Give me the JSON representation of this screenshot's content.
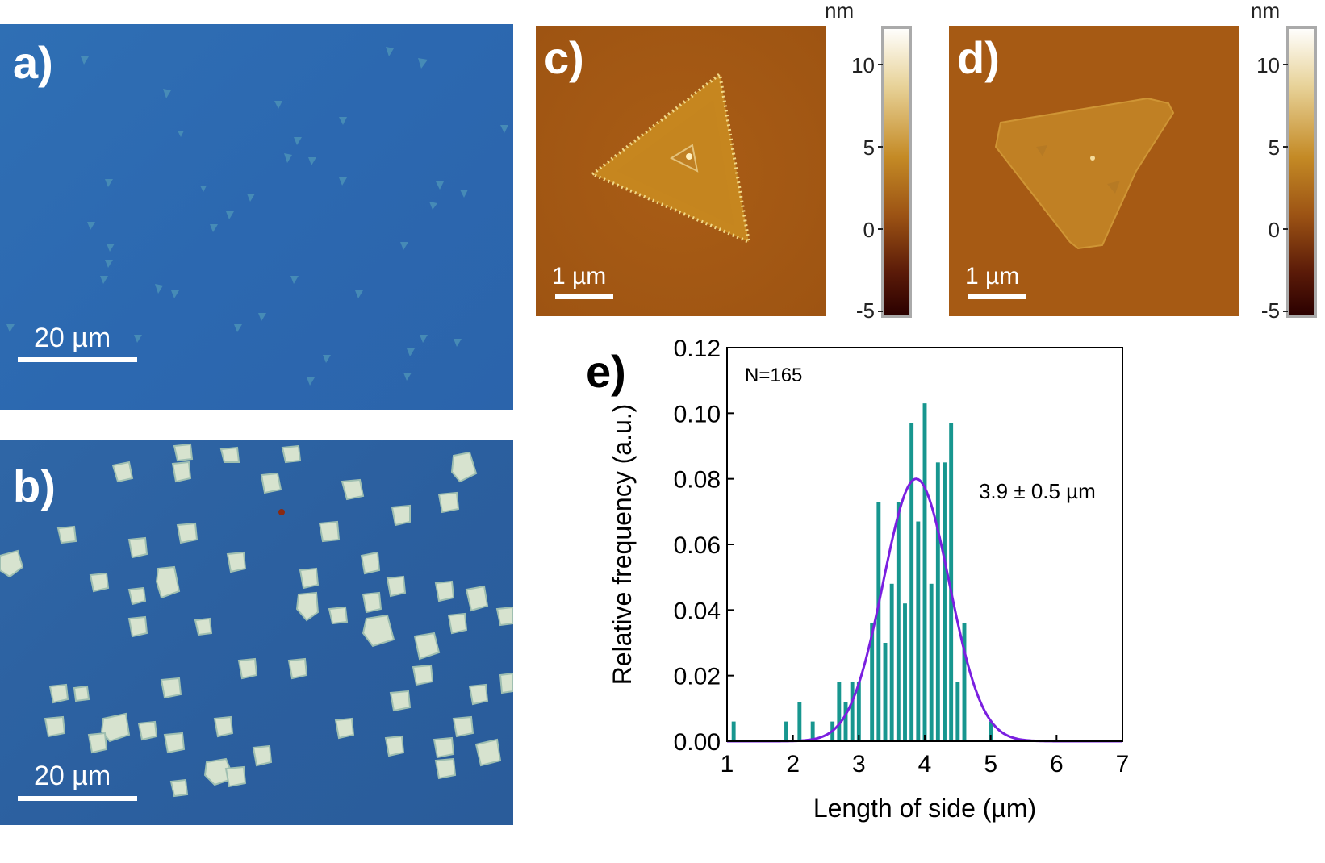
{
  "panels": {
    "a": {
      "label": "a)",
      "scale_label": "20 µm"
    },
    "b": {
      "label": "b)",
      "scale_label": "20 µm"
    },
    "c": {
      "label": "c)",
      "scale_label": "1 µm",
      "colorbar_unit": "nm",
      "colorbar_ticks": [
        "10",
        "5",
        "0",
        "-5"
      ]
    },
    "d": {
      "label": "d)",
      "scale_label": "1 µm",
      "colorbar_unit": "nm",
      "colorbar_ticks": [
        "10",
        "5",
        "0",
        "-5"
      ]
    }
  },
  "chart_data": {
    "type": "bar",
    "panel_label": "e)",
    "title": "",
    "xlabel": "Length of side (µm)",
    "ylabel": "Relative frequency (a.u.)",
    "xlim": [
      1,
      7
    ],
    "ylim": [
      0,
      0.12
    ],
    "xticks": [
      "1",
      "2",
      "3",
      "4",
      "5",
      "6",
      "7"
    ],
    "yticks": [
      "0.00",
      "0.02",
      "0.04",
      "0.06",
      "0.08",
      "0.10",
      "0.12"
    ],
    "annotations": {
      "count": "N=165",
      "fit": "3.9 ± 0.5 µm"
    },
    "bar_color": "#17968f",
    "fit_color": "#7a1fe0",
    "bars": [
      {
        "x": 1.1,
        "y": 0.006
      },
      {
        "x": 1.9,
        "y": 0.006
      },
      {
        "x": 2.1,
        "y": 0.012
      },
      {
        "x": 2.3,
        "y": 0.006
      },
      {
        "x": 2.6,
        "y": 0.006
      },
      {
        "x": 2.7,
        "y": 0.018
      },
      {
        "x": 2.8,
        "y": 0.012
      },
      {
        "x": 2.9,
        "y": 0.018
      },
      {
        "x": 3.0,
        "y": 0.018
      },
      {
        "x": 3.2,
        "y": 0.036
      },
      {
        "x": 3.3,
        "y": 0.073
      },
      {
        "x": 3.4,
        "y": 0.03
      },
      {
        "x": 3.5,
        "y": 0.048
      },
      {
        "x": 3.6,
        "y": 0.073
      },
      {
        "x": 3.7,
        "y": 0.042
      },
      {
        "x": 3.8,
        "y": 0.097
      },
      {
        "x": 3.9,
        "y": 0.067
      },
      {
        "x": 4.0,
        "y": 0.103
      },
      {
        "x": 4.1,
        "y": 0.048
      },
      {
        "x": 4.2,
        "y": 0.085
      },
      {
        "x": 4.3,
        "y": 0.085
      },
      {
        "x": 4.4,
        "y": 0.097
      },
      {
        "x": 4.5,
        "y": 0.018
      },
      {
        "x": 4.6,
        "y": 0.036
      },
      {
        "x": 5.0,
        "y": 0.006
      }
    ],
    "fit": {
      "type": "gaussian",
      "mean": 3.87,
      "sigma": 0.5,
      "peak": 0.08
    }
  }
}
